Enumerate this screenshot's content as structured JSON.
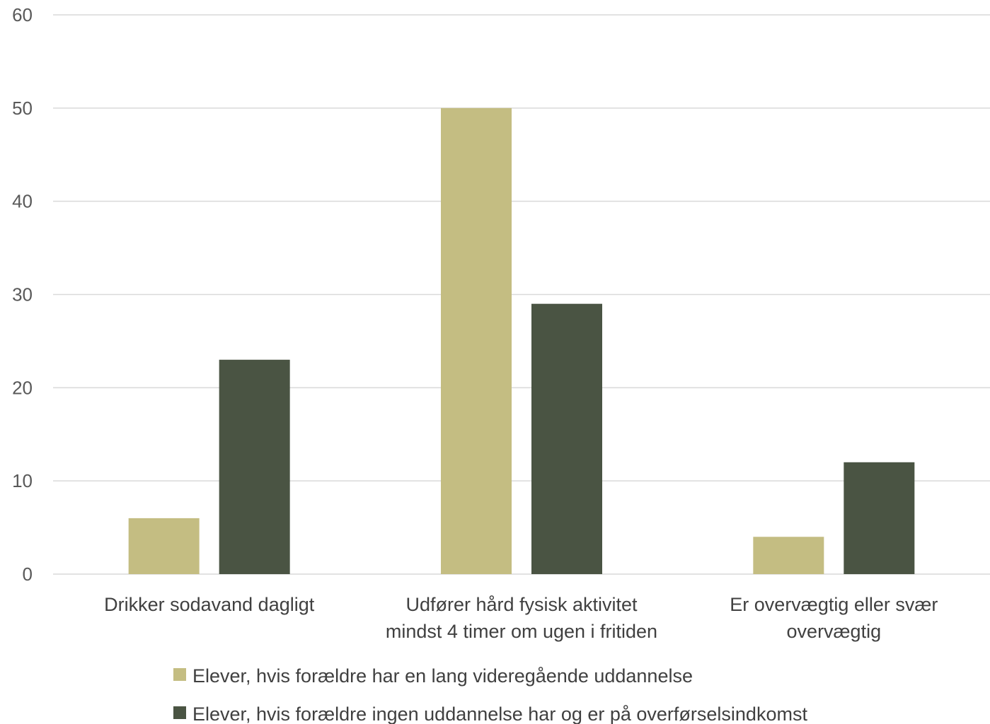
{
  "chart_data": {
    "type": "bar",
    "categories": [
      [
        "Drikker sodavand dagligt"
      ],
      [
        "Udfører hård fysisk aktivitet",
        "mindst 4 timer om ugen i fritiden"
      ],
      [
        "Er overvægtig eller svær",
        "overvægtig"
      ]
    ],
    "series": [
      {
        "name": "Elever, hvis forældre har en lang videregående uddannelse",
        "color": "#c4bd82",
        "values": [
          6,
          50,
          4
        ]
      },
      {
        "name": "Elever, hvis forældre ingen uddannelse har og er på overførselsindkomst",
        "color": "#4a5443",
        "values": [
          23,
          29,
          12
        ]
      }
    ],
    "yticks": [
      "0",
      "10",
      "20",
      "30",
      "40",
      "50",
      "60"
    ],
    "ylim": [
      0,
      60
    ],
    "grid": true,
    "legend_position": "bottom"
  }
}
